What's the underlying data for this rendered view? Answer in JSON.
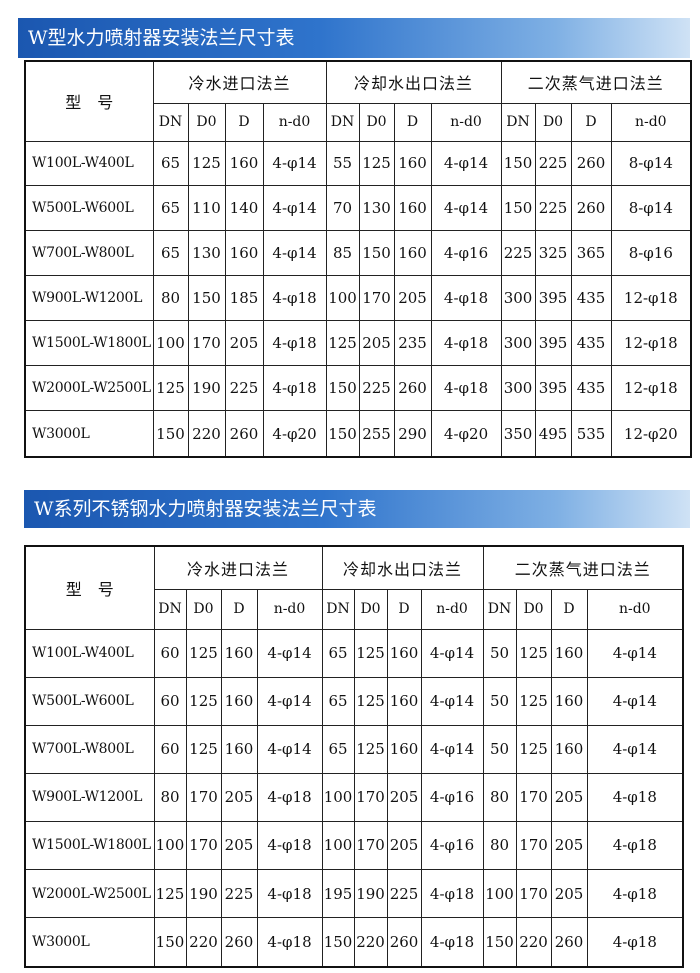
{
  "tables": [
    {
      "title": "W型水力喷射器安装法兰尺寸表",
      "model_header": "型　号",
      "groups": [
        "冷水进口法兰",
        "冷却水出口法兰",
        "二次蒸气进口法兰"
      ],
      "subheaders": [
        "DN",
        "D0",
        "D",
        "n-d0"
      ],
      "rows": [
        [
          "W100L-W400L",
          "65",
          "125",
          "160",
          "4-φ14",
          "55",
          "125",
          "160",
          "4-φ14",
          "150",
          "225",
          "260",
          "8-φ14"
        ],
        [
          "W500L-W600L",
          "65",
          "110",
          "140",
          "4-φ14",
          "70",
          "130",
          "160",
          "4-φ14",
          "150",
          "225",
          "260",
          "8-φ14"
        ],
        [
          "W700L-W800L",
          "65",
          "130",
          "160",
          "4-φ14",
          "85",
          "150",
          "160",
          "4-φ16",
          "225",
          "325",
          "365",
          "8-φ16"
        ],
        [
          "W900L-W1200L",
          "80",
          "150",
          "185",
          "4-φ18",
          "100",
          "170",
          "205",
          "4-φ18",
          "300",
          "395",
          "435",
          "12-φ18"
        ],
        [
          "W1500L-W1800L",
          "100",
          "170",
          "205",
          "4-φ18",
          "125",
          "205",
          "235",
          "4-φ18",
          "300",
          "395",
          "435",
          "12-φ18"
        ],
        [
          "W2000L-W2500L",
          "125",
          "190",
          "225",
          "4-φ18",
          "150",
          "225",
          "260",
          "4-φ18",
          "300",
          "395",
          "435",
          "12-φ18"
        ],
        [
          "W3000L",
          "150",
          "220",
          "260",
          "4-φ20",
          "150",
          "255",
          "290",
          "4-φ20",
          "350",
          "495",
          "535",
          "12-φ20"
        ]
      ]
    },
    {
      "title": "W系列不锈钢水力喷射器安装法兰尺寸表",
      "model_header": "型　号",
      "groups": [
        "冷水进口法兰",
        "冷却水出口法兰",
        "二次蒸气进口法兰"
      ],
      "subheaders": [
        "DN",
        "D0",
        "D",
        "n-d0"
      ],
      "rows": [
        [
          "W100L-W400L",
          "60",
          "125",
          "160",
          "4-φ14",
          "65",
          "125",
          "160",
          "4-φ14",
          "50",
          "125",
          "160",
          "4-φ14"
        ],
        [
          "W500L-W600L",
          "60",
          "125",
          "160",
          "4-φ14",
          "65",
          "125",
          "160",
          "4-φ14",
          "50",
          "125",
          "160",
          "4-φ14"
        ],
        [
          "W700L-W800L",
          "60",
          "125",
          "160",
          "4-φ14",
          "65",
          "125",
          "160",
          "4-φ14",
          "50",
          "125",
          "160",
          "4-φ14"
        ],
        [
          "W900L-W1200L",
          "80",
          "170",
          "205",
          "4-φ18",
          "100",
          "170",
          "205",
          "4-φ16",
          "80",
          "170",
          "205",
          "4-φ18"
        ],
        [
          "W1500L-W1800L",
          "100",
          "170",
          "205",
          "4-φ18",
          "100",
          "170",
          "205",
          "4-φ16",
          "80",
          "170",
          "205",
          "4-φ18"
        ],
        [
          "W2000L-W2500L",
          "125",
          "190",
          "225",
          "4-φ18",
          "195",
          "190",
          "225",
          "4-φ18",
          "100",
          "170",
          "205",
          "4-φ18"
        ],
        [
          "W3000L",
          "150",
          "220",
          "260",
          "4-φ18",
          "150",
          "220",
          "260",
          "4-φ18",
          "150",
          "220",
          "260",
          "4-φ18"
        ]
      ]
    }
  ],
  "colors": {
    "banner_start": "#1b57b0",
    "banner_end": "#cfe2f5",
    "border": "#111111"
  }
}
